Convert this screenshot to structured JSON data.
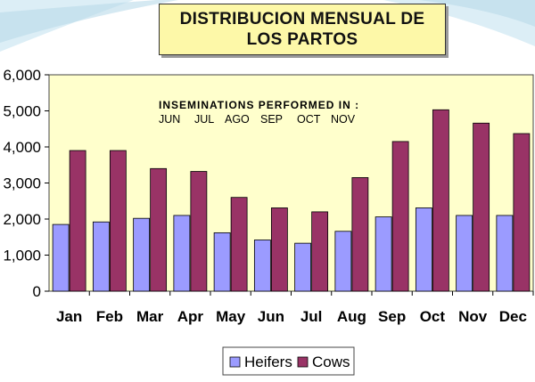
{
  "title": {
    "line1": "DISTRIBUCION MENSUAL DE",
    "line2": "LOS PARTOS"
  },
  "colors": {
    "heifers": "#9b9bff",
    "cows": "#993366",
    "plot_bg": "#ffffcc",
    "title_bg": "#fdf8a8"
  },
  "chart_data": {
    "type": "bar",
    "categories": [
      "Jan",
      "Feb",
      "Mar",
      "Apr",
      "May",
      "Jun",
      "Jul",
      "Aug",
      "Sep",
      "Oct",
      "Nov",
      "Dec"
    ],
    "series": [
      {
        "name": "Heifers",
        "values": [
          1850,
          1920,
          2020,
          2100,
          1620,
          1420,
          1330,
          1660,
          2060,
          2310,
          2100,
          2100
        ]
      },
      {
        "name": "Cows",
        "values": [
          3900,
          3900,
          3400,
          3320,
          2600,
          2310,
          2200,
          3150,
          4150,
          5030,
          4660,
          4370
        ]
      }
    ],
    "ylim": [
      0,
      6000
    ],
    "yticks": [
      "0",
      "1,000",
      "2,000",
      "3,000",
      "4,000",
      "5,000",
      "6,000"
    ],
    "grid": false,
    "legend": "bottom",
    "annotation": {
      "line1": "INSEMINATIONS PERFORMED IN :",
      "line2": [
        "JUN",
        "JUL",
        "AGO",
        "SEP",
        "OCT",
        "NOV"
      ]
    }
  }
}
